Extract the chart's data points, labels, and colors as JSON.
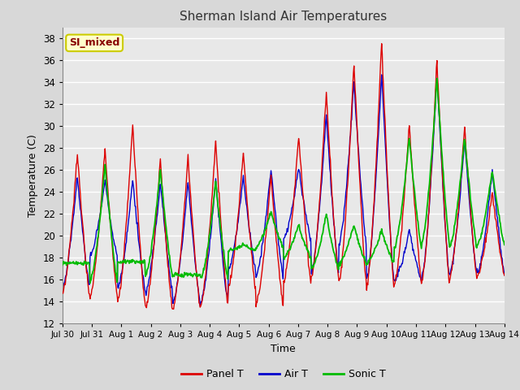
{
  "title": "Sherman Island Air Temperatures",
  "xlabel": "Time",
  "ylabel": "Temperature (C)",
  "ylim": [
    12,
    39
  ],
  "yticks": [
    12,
    14,
    16,
    18,
    20,
    22,
    24,
    26,
    28,
    30,
    32,
    34,
    36,
    38
  ],
  "legend_label": "SI_mixed",
  "legend_box_color": "#ffffcc",
  "legend_box_edge": "#cccc00",
  "legend_text_color": "#880000",
  "panel_color": "#dd0000",
  "air_color": "#0000cc",
  "sonic_color": "#00bb00",
  "series_labels": [
    "Panel T",
    "Air T",
    "Sonic T"
  ],
  "bg_color": "#e8e8e8",
  "grid_color": "#ffffff",
  "x_tick_labels": [
    "Jul 30",
    "Jul 31",
    "Aug 1",
    "Aug 2",
    "Aug 3",
    "Aug 4",
    "Aug 5",
    "Aug 6",
    "Aug 7",
    "Aug 8",
    "Aug 9",
    "Aug 10",
    "Aug 11",
    "Aug 12",
    "Aug 13",
    "Aug 14"
  ],
  "panel_peaks": [
    27.5,
    28.0,
    30.2,
    27.0,
    27.2,
    28.7,
    27.7,
    25.5,
    29.2,
    33.2,
    35.9,
    37.8,
    30.3,
    36.1,
    30.0,
    24.0
  ],
  "panel_mins": [
    14.6,
    14.5,
    14.0,
    13.3,
    13.4,
    13.7,
    15.3,
    13.8,
    15.9,
    16.2,
    15.8,
    15.4,
    15.7,
    16.0,
    16.2,
    16.4
  ],
  "air_peaks": [
    25.5,
    25.0,
    25.2,
    24.9,
    25.0,
    25.2,
    25.5,
    26.2,
    26.2,
    31.1,
    34.1,
    34.9,
    20.5,
    34.9,
    28.8,
    26.0
  ],
  "air_mins": [
    15.3,
    18.2,
    15.3,
    14.8,
    13.9,
    13.9,
    16.9,
    16.3,
    19.7,
    16.7,
    19.3,
    16.1,
    15.9,
    16.4,
    16.5,
    16.6
  ],
  "sonic_peaks": [
    17.5,
    26.5,
    17.7,
    26.1,
    16.5,
    24.9,
    19.2,
    22.2,
    21.0,
    22.0,
    21.0,
    20.5,
    29.0,
    34.5,
    29.0,
    26.0
  ],
  "sonic_mins": [
    17.5,
    15.8,
    17.6,
    16.3,
    16.4,
    16.1,
    18.7,
    19.0,
    18.0,
    17.0,
    17.5,
    17.5,
    19.0,
    19.5,
    19.0,
    19.2
  ]
}
